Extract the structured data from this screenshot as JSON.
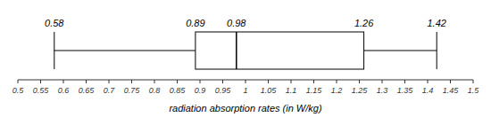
{
  "chart_data": {
    "type": "box",
    "orientation": "horizontal",
    "xlabel": "radiation absorption rates (in W/kg)",
    "min": 0.58,
    "q1": 0.89,
    "median": 0.98,
    "q3": 1.26,
    "max": 1.42,
    "color": "black",
    "data_labels": true,
    "xlim": [
      0.5,
      1.5
    ],
    "xticks": [
      0.5,
      0.55,
      0.6,
      0.65,
      0.7,
      0.75,
      0.8,
      0.85,
      0.9,
      0.95,
      1,
      1.05,
      1.1,
      1.15,
      1.2,
      1.25,
      1.3,
      1.35,
      1.4,
      1.45,
      1.5
    ]
  }
}
